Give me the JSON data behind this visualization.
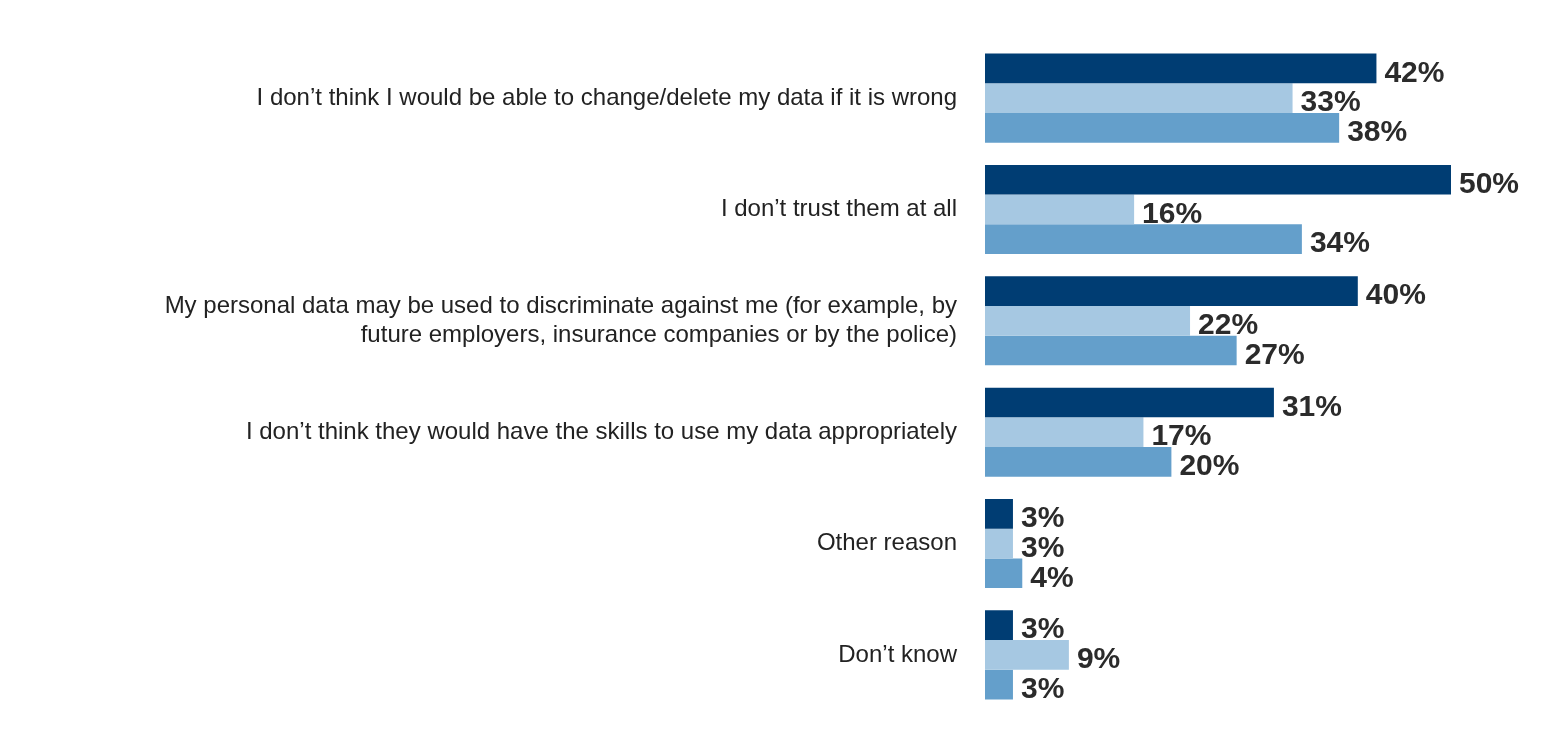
{
  "chart_data": {
    "type": "bar",
    "orientation": "horizontal",
    "categories": [
      "I don’t think I would be able to change/delete my data if it is wrong",
      "I don’t trust them at all",
      "My personal data may be used to discriminate against me (for example, by future employers, insurance companies or by the police)",
      "I don’t think they would have the skills to use my data appropriately",
      "Other reason",
      "Don’t know"
    ],
    "series": [
      {
        "color": "#003d73",
        "values": [
          42,
          50,
          40,
          31,
          3,
          3
        ],
        "value_labels": [
          "42%",
          "50%",
          "40%",
          "31%",
          "3%",
          "3%"
        ]
      },
      {
        "color": "#a6c8e2",
        "values": [
          33,
          16,
          22,
          17,
          3,
          9
        ],
        "value_labels": [
          "33%",
          "16%",
          "22%",
          "17%",
          "3%",
          "9%"
        ]
      },
      {
        "color": "#649fcb",
        "values": [
          38,
          34,
          27,
          20,
          4,
          3
        ],
        "value_labels": [
          "38%",
          "34%",
          "27%",
          "20%",
          "4%",
          "3%"
        ]
      }
    ],
    "legend": false
  }
}
